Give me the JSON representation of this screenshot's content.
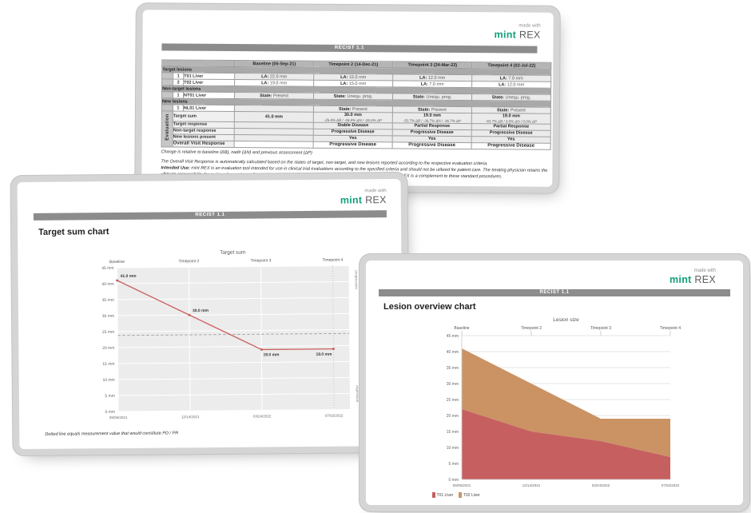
{
  "brand": {
    "made_with": "made with",
    "mint": "mint",
    "rex": "REX"
  },
  "shared": {
    "criteria": "RECIST 1.1"
  },
  "report_page": {
    "table": {
      "columns": [
        "Baseline (05-Sep-21)",
        "Timepoint 2 (14-Dec-21)",
        "Timepoint 3 (24-Mar-22)",
        "Timepoint 4 (02-Jul-22)"
      ],
      "sections": [
        {
          "title": "Target lesions",
          "rows": [
            {
              "num": "1",
              "name": "T01 Liver",
              "shade": "gray",
              "cells": [
                {
                  "label": "LA:",
                  "value": "22.0 mm"
                },
                {
                  "label": "LA:",
                  "value": "15.0 mm"
                },
                {
                  "label": "LA:",
                  "value": "12.0 mm"
                },
                {
                  "label": "LA:",
                  "value": "7.0 mm"
                }
              ]
            },
            {
              "num": "2",
              "name": "T02 Liver",
              "shade": "white",
              "cells": [
                {
                  "label": "LA:",
                  "value": "19.0 mm"
                },
                {
                  "label": "LA:",
                  "value": "15.0 mm"
                },
                {
                  "label": "LA:",
                  "value": "7.0 mm"
                },
                {
                  "label": "LA:",
                  "value": "12.0 mm"
                }
              ]
            }
          ]
        },
        {
          "title": "Non-target lesions",
          "rows": [
            {
              "num": "1",
              "name": "NT01 Liver",
              "shade": "gray",
              "cells": [
                {
                  "label": "State:",
                  "value": "Present"
                },
                {
                  "label": "State:",
                  "value": "Unequ. prog."
                },
                {
                  "label": "State:",
                  "value": "Unequ. prog."
                },
                {
                  "label": "State:",
                  "value": "Unequ. prog."
                }
              ]
            }
          ]
        },
        {
          "title": "New lesions",
          "rows": [
            {
              "num": "1",
              "name": "NL01 Liver",
              "shade": "gray",
              "cells": [
                {
                  "label": "",
                  "value": ""
                },
                {
                  "label": "State:",
                  "value": "Present"
                },
                {
                  "label": "State:",
                  "value": "Present"
                },
                {
                  "label": "State:",
                  "value": "Present"
                }
              ]
            }
          ]
        }
      ],
      "evaluation": {
        "label": "Evaluation",
        "rows": [
          {
            "name": "Target sum",
            "shade": "gray",
            "big": false,
            "cells": [
              {
                "main": "41.0 mm",
                "sub": ""
              },
              {
                "main": "30.0 mm",
                "sub": "-26.8% ΔB / -26.8% ΔN / -26.8% ΔP"
              },
              {
                "main": "19.0 mm",
                "sub": "-53.7% ΔB / -36.7% ΔN / -36.7% ΔP"
              },
              {
                "main": "19.0 mm",
                "sub": "-53.7% ΔB / 0.0% ΔN / 0.0% ΔP"
              }
            ]
          },
          {
            "name": "Target response",
            "shade": "gray",
            "big": false,
            "cells": [
              {
                "main": "",
                "sub": ""
              },
              {
                "main": "Stable Disease",
                "sub": ""
              },
              {
                "main": "Partial Response",
                "sub": ""
              },
              {
                "main": "Partial Response",
                "sub": ""
              }
            ]
          },
          {
            "name": "Non-target response",
            "shade": "gray",
            "big": false,
            "cells": [
              {
                "main": "",
                "sub": ""
              },
              {
                "main": "Progressive Disease",
                "sub": ""
              },
              {
                "main": "Progressive Disease",
                "sub": ""
              },
              {
                "main": "Progressive Disease",
                "sub": ""
              }
            ]
          },
          {
            "name": "New lesions present",
            "shade": "gray",
            "big": false,
            "cells": [
              {
                "main": "",
                "sub": ""
              },
              {
                "main": "Yes",
                "sub": ""
              },
              {
                "main": "Yes",
                "sub": ""
              },
              {
                "main": "Yes",
                "sub": ""
              }
            ]
          },
          {
            "name": "Overall Visit Response",
            "shade": "white",
            "big": true,
            "cells": [
              {
                "main": "",
                "sub": ""
              },
              {
                "main": "Progressive Disease",
                "sub": ""
              },
              {
                "main": "Progressive Disease",
                "sub": ""
              },
              {
                "main": "Progressive Disease",
                "sub": ""
              }
            ]
          }
        ]
      }
    },
    "footnotes": {
      "change": "Change is relative to baseline (ΔB), nadir (ΔN) and previous assessment (ΔP)",
      "overall": "The Overall Visit Response is automatically calculated based on the states of target, non-target, and new lesions reported according to the respective evaluation criteria.",
      "intended_label": "Intended Use:",
      "intended_text": " mint REX is an evaluation tool intended for use in clinical trial evaluations according to the specified criteria and should not be utilized for patient care. The treating physician retains the ultimate responsibility for making the pertinent diagnosis and patient care decisions based on their standard practices. mint REX is a complement to these standard procedures."
    }
  },
  "target_sum_page": {
    "heading": "Target sum chart",
    "footnote": "Dotted line equals measurement value that would constitute PD / PR"
  },
  "lesion_page": {
    "heading": "Lesion overview chart"
  },
  "chart_data": [
    {
      "type": "line",
      "title": "Target sum",
      "top_labels": [
        "Baseline",
        "Timepoint 2",
        "Timepoint 3",
        "Timepoint 4"
      ],
      "x": [
        "09/05/2021",
        "12/14/2021",
        "03/24/2022",
        "07/02/2022"
      ],
      "values": [
        41.0,
        30.0,
        19.0,
        19.0
      ],
      "point_labels": [
        "41.0 mm",
        "30.0 mm",
        "19.0 mm",
        "19.0 mm"
      ],
      "ylim": [
        0,
        45
      ],
      "ytick_step": 5,
      "yunit": "mm",
      "series_color": "#cc5f5c",
      "threshold_dashed_y": 23.8,
      "vline_x_index": 3,
      "right_axis_labels": {
        "top": "progression",
        "bottom": "regression"
      },
      "plot_bg": "#ececec",
      "grid_color": "#ffffff"
    },
    {
      "type": "area",
      "title": "Lesion size",
      "top_labels": [
        "Baseline",
        "Timepoint 2",
        "Timepoint 3",
        "Timepoint 4"
      ],
      "x": [
        "09/05/2021",
        "12/14/2021",
        "03/24/2022",
        "07/02/2022"
      ],
      "series": [
        {
          "name": "T01 Liver",
          "values": [
            22,
            15,
            12,
            7
          ],
          "color": "#c66060"
        },
        {
          "name": "T02 Liver",
          "values": [
            19,
            15,
            7,
            12
          ],
          "color": "#cb9364"
        }
      ],
      "ylim": [
        0,
        45
      ],
      "ytick_step": 5,
      "yunit": "mm",
      "plot_bg": "#ffffff",
      "grid_color": "#dedede"
    }
  ]
}
